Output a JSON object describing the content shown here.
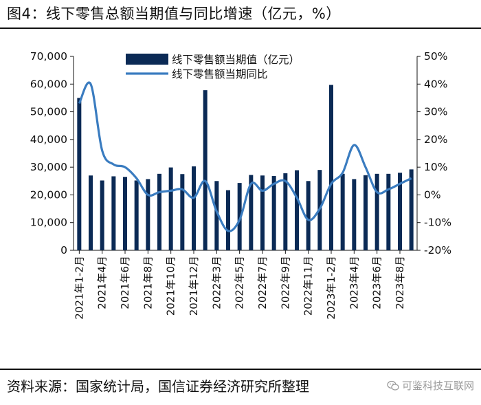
{
  "page": {
    "title": "图4：线下零售总额当期值与同比增速（亿元，%）",
    "source": "资料来源：国家统计局，国信证券经济研究所整理",
    "watermark": "可鉴科技互联网",
    "watermark_icon": "wechat-icon"
  },
  "colors": {
    "bar": "#0b2a55",
    "line": "#3a7cc0",
    "axis": "#111111"
  },
  "chart_data": {
    "type": "bar+line",
    "title": "",
    "categories": [
      "2021年1-2月",
      "2021年3月",
      "2021年4月",
      "2021年5月",
      "2021年6月",
      "2021年7月",
      "2021年8月",
      "2021年9月",
      "2021年10月",
      "2021年11月",
      "2021年12月",
      "2022年1-2月",
      "2022年3月",
      "2022年4月",
      "2022年5月",
      "2022年6月",
      "2022年7月",
      "2022年8月",
      "2022年9月",
      "2022年10月",
      "2022年11月",
      "2022年12月",
      "2023年1-2月",
      "2023年3月",
      "2023年4月",
      "2023年5月",
      "2023年6月",
      "2023年7月",
      "2023年8月",
      "2023年9月"
    ],
    "x_tick_labels": [
      "2021年1-2月",
      "2021年4月",
      "2021年6月",
      "2021年8月",
      "2021年10月",
      "2021年12月",
      "2022年3月",
      "2022年5月",
      "2022年7月",
      "2022年9月",
      "2022年11月",
      "2023年1-2月",
      "2023年4月",
      "2023年6月",
      "2023年8月"
    ],
    "x_tick_indices": [
      0,
      2,
      4,
      6,
      8,
      10,
      12,
      14,
      16,
      18,
      20,
      22,
      24,
      26,
      28
    ],
    "series": [
      {
        "name": "线下零售额当期值（亿元）",
        "type": "bar",
        "axis": "left",
        "values": [
          55000,
          27000,
          25200,
          26700,
          26500,
          25200,
          25700,
          27600,
          29900,
          27500,
          30300,
          57800,
          25000,
          21700,
          24300,
          27200,
          27000,
          26800,
          27800,
          28900,
          25000,
          29000,
          59700,
          27600,
          25700,
          27100,
          27600,
          27600,
          28000,
          29200
        ]
      },
      {
        "name": "线下零售额当期同比",
        "type": "line",
        "axis": "right",
        "values": [
          33,
          40,
          16,
          11,
          10,
          6,
          0,
          1,
          1.5,
          2,
          -1,
          5,
          -6,
          -13,
          -9,
          4,
          1.5,
          4,
          5,
          -1,
          -9,
          -5,
          4,
          8,
          18,
          10,
          1,
          2,
          4,
          6
        ]
      }
    ],
    "y_left": {
      "min": 0,
      "max": 70000,
      "ticks": [
        "0",
        "10,000",
        "20,000",
        "30,000",
        "40,000",
        "50,000",
        "60,000",
        "70,000"
      ]
    },
    "y_right": {
      "min": -20,
      "max": 50,
      "ticks": [
        "-20%",
        "-10%",
        "0%",
        "10%",
        "20%",
        "30%",
        "40%",
        "50%"
      ]
    },
    "legend": [
      "线下零售额当期值（亿元）",
      "线下零售额当期同比"
    ],
    "legend_position": "top-center"
  }
}
